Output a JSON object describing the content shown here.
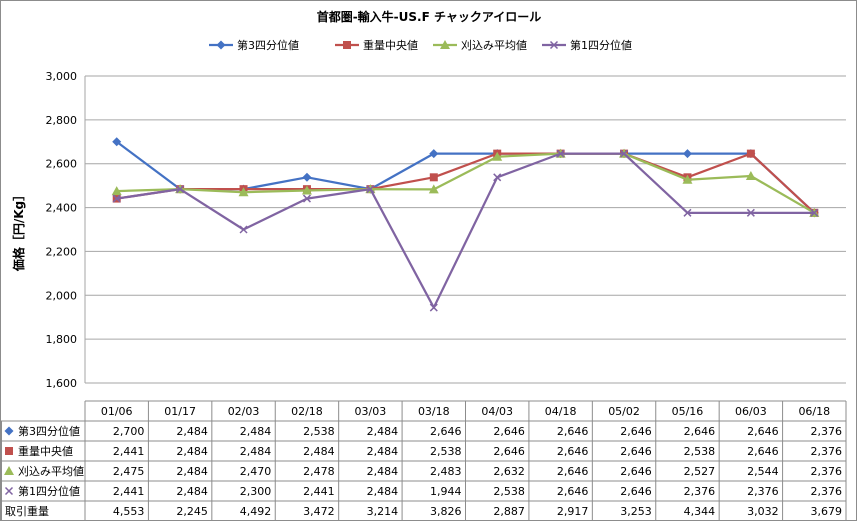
{
  "chart_data": {
    "type": "line",
    "title": "首都圏-輸入牛-US.F チャックアイロール",
    "ylabel": "価格［円/Kg］",
    "ylim": [
      1600,
      3000
    ],
    "yticks": [
      "1,600",
      "1,800",
      "2,000",
      "2,200",
      "2,400",
      "2,600",
      "2,800",
      "3,000"
    ],
    "ytick_values": [
      1600,
      1800,
      2000,
      2200,
      2400,
      2600,
      2800,
      3000
    ],
    "grid": "horizontal",
    "legend_position": "top",
    "categories": [
      "01/06",
      "01/17",
      "02/03",
      "02/18",
      "03/03",
      "03/18",
      "04/03",
      "04/18",
      "05/02",
      "05/16",
      "06/03",
      "06/18"
    ],
    "series": [
      {
        "name": "第3四分位値",
        "color": "#4472C4",
        "marker": "diamond",
        "values": [
          2700,
          2484,
          2484,
          2538,
          2484,
          2646,
          2646,
          2646,
          2646,
          2646,
          2646,
          2376
        ],
        "labels": [
          "2,700",
          "2,484",
          "2,484",
          "2,538",
          "2,484",
          "2,646",
          "2,646",
          "2,646",
          "2,646",
          "2,646",
          "2,646",
          "2,376"
        ]
      },
      {
        "name": "重量中央値",
        "color": "#C0504D",
        "marker": "square",
        "values": [
          2441,
          2484,
          2484,
          2484,
          2484,
          2538,
          2646,
          2646,
          2646,
          2538,
          2646,
          2376
        ],
        "labels": [
          "2,441",
          "2,484",
          "2,484",
          "2,484",
          "2,484",
          "2,538",
          "2,646",
          "2,646",
          "2,646",
          "2,538",
          "2,646",
          "2,376"
        ]
      },
      {
        "name": "刈込み平均値",
        "color": "#9BBB59",
        "marker": "triangle",
        "values": [
          2475,
          2484,
          2470,
          2478,
          2484,
          2483,
          2632,
          2646,
          2646,
          2527,
          2544,
          2376
        ],
        "labels": [
          "2,475",
          "2,484",
          "2,470",
          "2,478",
          "2,484",
          "2,483",
          "2,632",
          "2,646",
          "2,646",
          "2,527",
          "2,544",
          "2,376"
        ]
      },
      {
        "name": "第1四分位値",
        "color": "#8064A2",
        "marker": "x",
        "values": [
          2441,
          2484,
          2300,
          2441,
          2484,
          1944,
          2538,
          2646,
          2646,
          2376,
          2376,
          2376
        ],
        "labels": [
          "2,441",
          "2,484",
          "2,300",
          "2,441",
          "2,484",
          "1,944",
          "2,538",
          "2,646",
          "2,646",
          "2,376",
          "2,376",
          "2,376"
        ]
      }
    ],
    "extra_rows": [
      {
        "name": "取引重量",
        "labels": [
          "4,553",
          "2,245",
          "4,492",
          "3,472",
          "3,214",
          "3,826",
          "2,887",
          "2,917",
          "3,253",
          "4,344",
          "3,032",
          "3,679"
        ]
      }
    ]
  }
}
